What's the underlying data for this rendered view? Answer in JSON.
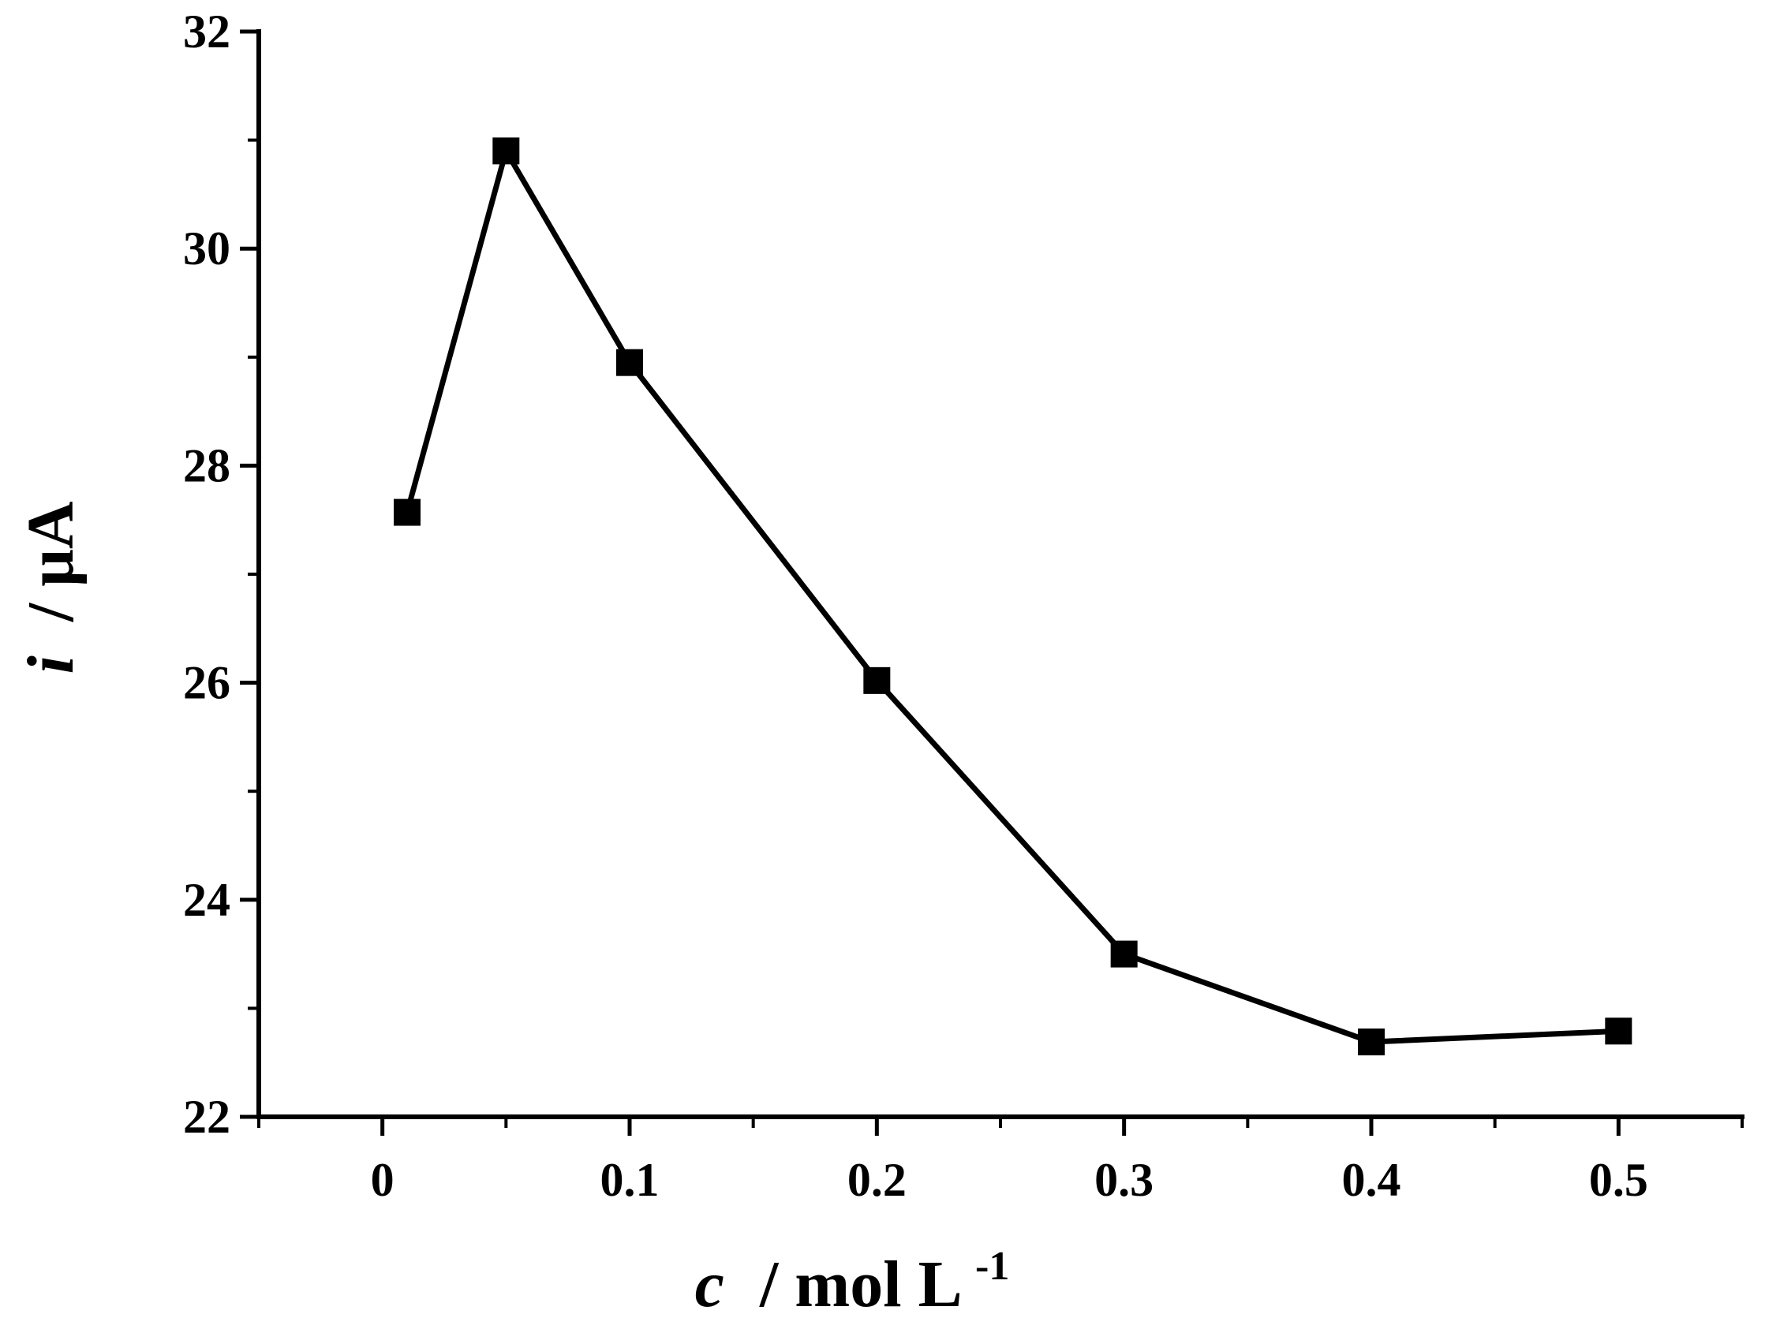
{
  "chart_data": {
    "type": "line",
    "x": [
      0.01,
      0.05,
      0.1,
      0.2,
      0.3,
      0.4,
      0.5
    ],
    "series": [
      {
        "values": [
          27.57,
          30.9,
          28.95,
          26.02,
          23.5,
          22.69,
          22.79
        ],
        "color": "#000000",
        "marker": "square"
      }
    ],
    "xlim": [
      -0.05,
      0.55
    ],
    "ylim": [
      22,
      32
    ],
    "x_ticks": [
      0,
      0.1,
      0.2,
      0.3,
      0.4,
      0.5
    ],
    "x_tick_labels": [
      "0",
      "0.1",
      "0.2",
      "0.3",
      "0.4",
      "0.5"
    ],
    "x_minor_ticks": [
      -0.05,
      0.05,
      0.15,
      0.25,
      0.35,
      0.45,
      0.55
    ],
    "y_ticks": [
      22,
      24,
      26,
      28,
      30,
      32
    ],
    "y_tick_labels": [
      "22",
      "24",
      "26",
      "28",
      "30",
      "32"
    ],
    "y_minor_ticks": [
      23,
      25,
      27,
      29,
      31
    ],
    "xlabel": {
      "var": "c",
      "unit": "/ mol L",
      "sup": "-1"
    },
    "ylabel": {
      "var": "i",
      "unit": "/ μA"
    },
    "grid": false
  }
}
